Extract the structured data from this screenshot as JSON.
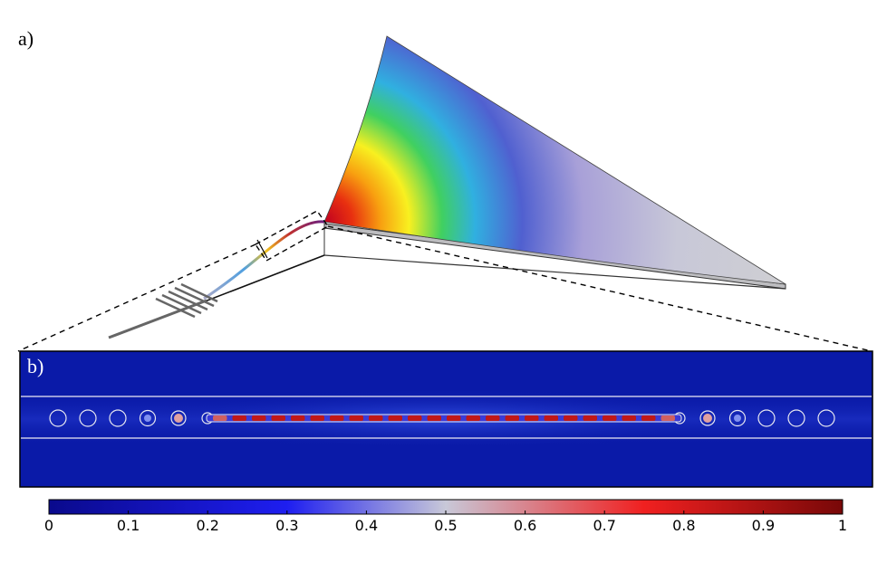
{
  "panel_a": {
    "label": "a)"
  },
  "panel_b": {
    "label": "b)"
  },
  "colorbar": {
    "min": 0,
    "max": 1,
    "tick_labels": [
      "0",
      "0.1",
      "0.2",
      "0.3",
      "0.4",
      "0.5",
      "0.6",
      "0.7",
      "0.8",
      "0.9",
      "1"
    ],
    "colors": [
      "#0a0a8c",
      "#1e1ef0",
      "#bcbcdc",
      "#f02020",
      "#7a0a0a"
    ]
  },
  "field_map": {
    "background_color": "#0a1aa8",
    "hole_count_per_side": 6
  }
}
